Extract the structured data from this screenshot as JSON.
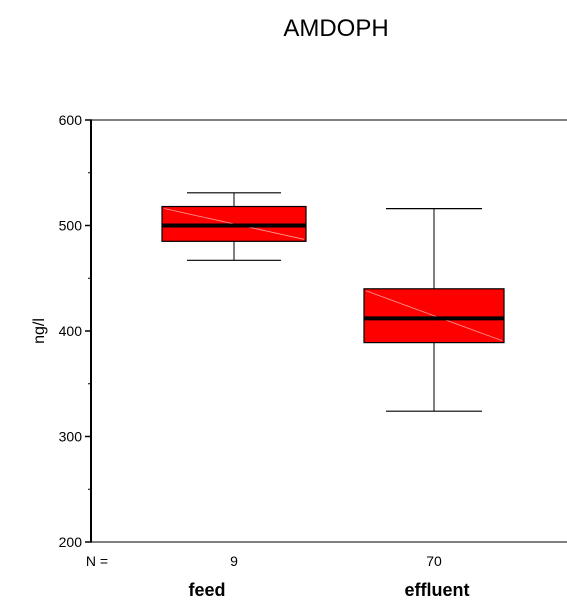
{
  "chart_data": {
    "type": "box",
    "title": "AMDOPH",
    "xlabel": "",
    "ylabel": "ng/l",
    "ylim": [
      200,
      600
    ],
    "yticks": [
      "600",
      "500",
      "400",
      "300",
      "200"
    ],
    "n_label": "N =",
    "categories": [
      "feed",
      "effluent"
    ],
    "n_values": [
      "9",
      "70"
    ],
    "boxes": [
      {
        "category": "feed",
        "n": 9,
        "min": 467,
        "q1": 485,
        "median": 500,
        "q3": 518,
        "max": 531
      },
      {
        "category": "effluent",
        "n": 70,
        "min": 324,
        "q1": 389,
        "median": 412,
        "q3": 440,
        "max": 516
      }
    ],
    "box_color": "#ff0000",
    "median_color": "#000000",
    "grid": false
  }
}
